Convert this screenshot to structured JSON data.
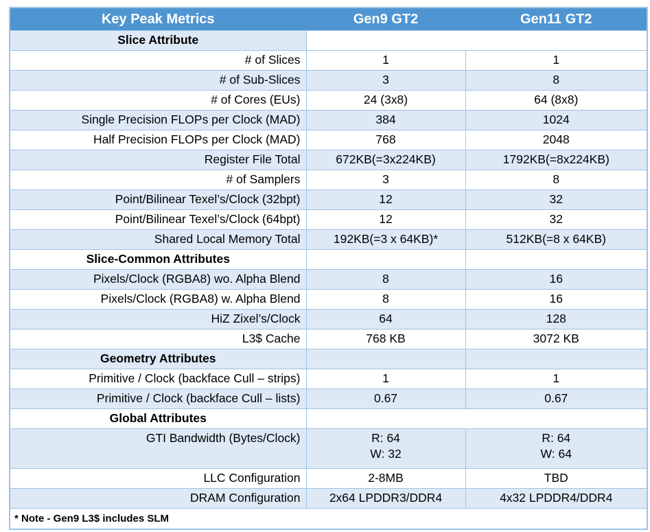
{
  "colors": {
    "header_bg": "#4e95d1",
    "header_text": "#ffffff",
    "tint_row_bg": "#dde9f5",
    "border": "#9ec3e6",
    "body_text": "#000000"
  },
  "header": {
    "metric": "Key Peak Metrics",
    "gen9": "Gen9 GT2",
    "gen11": "Gen11 GT2"
  },
  "rows": [
    {
      "type": "section",
      "label": "Slice Attribute",
      "tint": true,
      "merged": true
    },
    {
      "type": "data",
      "label": "# of Slices",
      "gen9": "1",
      "gen11": "1",
      "tint": false
    },
    {
      "type": "data",
      "label": "# of Sub-Slices",
      "gen9": "3",
      "gen11": "8",
      "tint": true
    },
    {
      "type": "data",
      "label": "# of Cores (EUs)",
      "gen9": "24 (3x8)",
      "gen11": "64 (8x8)",
      "tint": false
    },
    {
      "type": "data",
      "label": "Single Precision FLOPs per Clock (MAD)",
      "gen9": "384",
      "gen11": "1024",
      "tint": true
    },
    {
      "type": "data",
      "label": "Half Precision FLOPs per Clock (MAD)",
      "gen9": "768",
      "gen11": "2048",
      "tint": false
    },
    {
      "type": "data",
      "label": "Register File Total",
      "gen9": "672KB(=3x224KB)",
      "gen11": "1792KB(=8x224KB)",
      "tint": true
    },
    {
      "type": "data",
      "label": "# of Samplers",
      "gen9": "3",
      "gen11": "8",
      "tint": false
    },
    {
      "type": "data",
      "label": "Point/Bilinear Texel’s/Clock (32bpt)",
      "gen9": "12",
      "gen11": "32",
      "tint": true
    },
    {
      "type": "data",
      "label": "Point/Bilinear Texel’s/Clock (64bpt)",
      "gen9": "12",
      "gen11": "32",
      "tint": false
    },
    {
      "type": "data",
      "label": "Shared Local Memory Total",
      "gen9": "192KB(=3 x 64KB)*",
      "gen11": "512KB(=8 x 64KB)",
      "tint": true
    },
    {
      "type": "section",
      "label": "Slice-Common Attributes",
      "tint": false,
      "merged": false
    },
    {
      "type": "data",
      "label": "Pixels/Clock (RGBA8) wo. Alpha Blend",
      "gen9": "8",
      "gen11": "16",
      "tint": true
    },
    {
      "type": "data",
      "label": "Pixels/Clock (RGBA8) w. Alpha Blend",
      "gen9": "8",
      "gen11": "16",
      "tint": false
    },
    {
      "type": "data",
      "label": "HiZ Zixel’s/Clock",
      "gen9": "64",
      "gen11": "128",
      "tint": true
    },
    {
      "type": "data",
      "label": "L3$ Cache",
      "gen9": "768 KB",
      "gen11": "3072 KB",
      "tint": false
    },
    {
      "type": "section",
      "label": "Geometry Attributes",
      "tint": true,
      "merged": false
    },
    {
      "type": "data",
      "label": "Primitive / Clock (backface Cull – strips)",
      "gen9": "1",
      "gen11": "1",
      "tint": false
    },
    {
      "type": "data",
      "label": "Primitive / Clock (backface Cull – lists)",
      "gen9": "0.67",
      "gen11": "0.67",
      "tint": true
    },
    {
      "type": "section",
      "label": "Global Attributes",
      "tint": false,
      "merged": true
    },
    {
      "type": "data",
      "label": "GTI Bandwidth (Bytes/Clock)",
      "gen9": "R: 64\nW: 32",
      "gen11": "R: 64\nW: 64",
      "tint": true,
      "tall": true
    },
    {
      "type": "data",
      "label": "LLC Configuration",
      "gen9": "2-8MB",
      "gen11": "TBD",
      "tint": false
    },
    {
      "type": "data",
      "label": "DRAM Configuration",
      "gen9": "2x64 LPDDR3/DDR4",
      "gen11": "4x32 LPDDR4/DDR4",
      "tint": true
    }
  ],
  "note": "* Note - Gen9 L3$ includes SLM"
}
